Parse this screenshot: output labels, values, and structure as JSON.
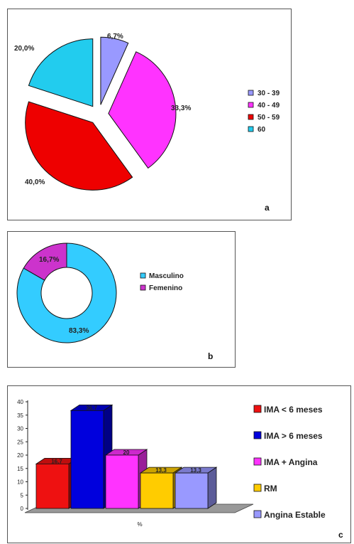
{
  "chart_data": [
    {
      "type": "pie",
      "panel_label": "a",
      "categories": [
        "30 - 39",
        "40 - 49",
        "50 - 59",
        "60"
      ],
      "values": [
        6.7,
        33.3,
        40.0,
        20.0
      ],
      "value_labels": [
        "6,7%",
        "33,3%",
        "40,0%",
        "20,0%"
      ],
      "colors": [
        "#9999ff",
        "#ff33ff",
        "#ee0000",
        "#22ccee"
      ],
      "exploded": true,
      "legend_position": "right"
    },
    {
      "type": "donut",
      "panel_label": "b",
      "categories": [
        "Masculino",
        "Femenino"
      ],
      "values": [
        83.3,
        16.7
      ],
      "value_labels": [
        "83,3%",
        "16,7%"
      ],
      "colors": [
        "#33ccff",
        "#cc33cc"
      ],
      "legend_position": "right"
    },
    {
      "type": "bar",
      "panel_label": "c",
      "categories": [
        "IMA < 6 meses",
        "IMA > 6 meses",
        "IMA + Angina",
        "RM",
        "Angina Estable"
      ],
      "values": [
        16.7,
        36.7,
        20,
        13.3,
        13.3
      ],
      "value_labels": [
        "16,7",
        "36,7",
        "20",
        "13,3",
        "13,3"
      ],
      "colors": [
        "#ee1111",
        "#0000dd",
        "#ff33ff",
        "#ffcc00",
        "#9999ff"
      ],
      "xlabel": "%",
      "ylim": [
        0,
        40
      ],
      "yticks": [
        "0",
        "5",
        "10",
        "15",
        "20",
        "25",
        "30",
        "35",
        "40"
      ],
      "legend_position": "right",
      "style": "3d"
    }
  ]
}
